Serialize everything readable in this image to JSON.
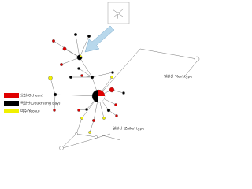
{
  "legend": [
    {
      "label": "오천(Ocheon)",
      "color": "#e00000"
    },
    {
      "label": "득량만(Deukryang Bay)",
      "color": "#000000"
    },
    {
      "label": "여수(Yeosu)",
      "color": "#f0f000"
    }
  ],
  "annotations": {
    "ken": "일본산 'Ken' type",
    "zaiko": "일본산 'Zaiko' type"
  }
}
